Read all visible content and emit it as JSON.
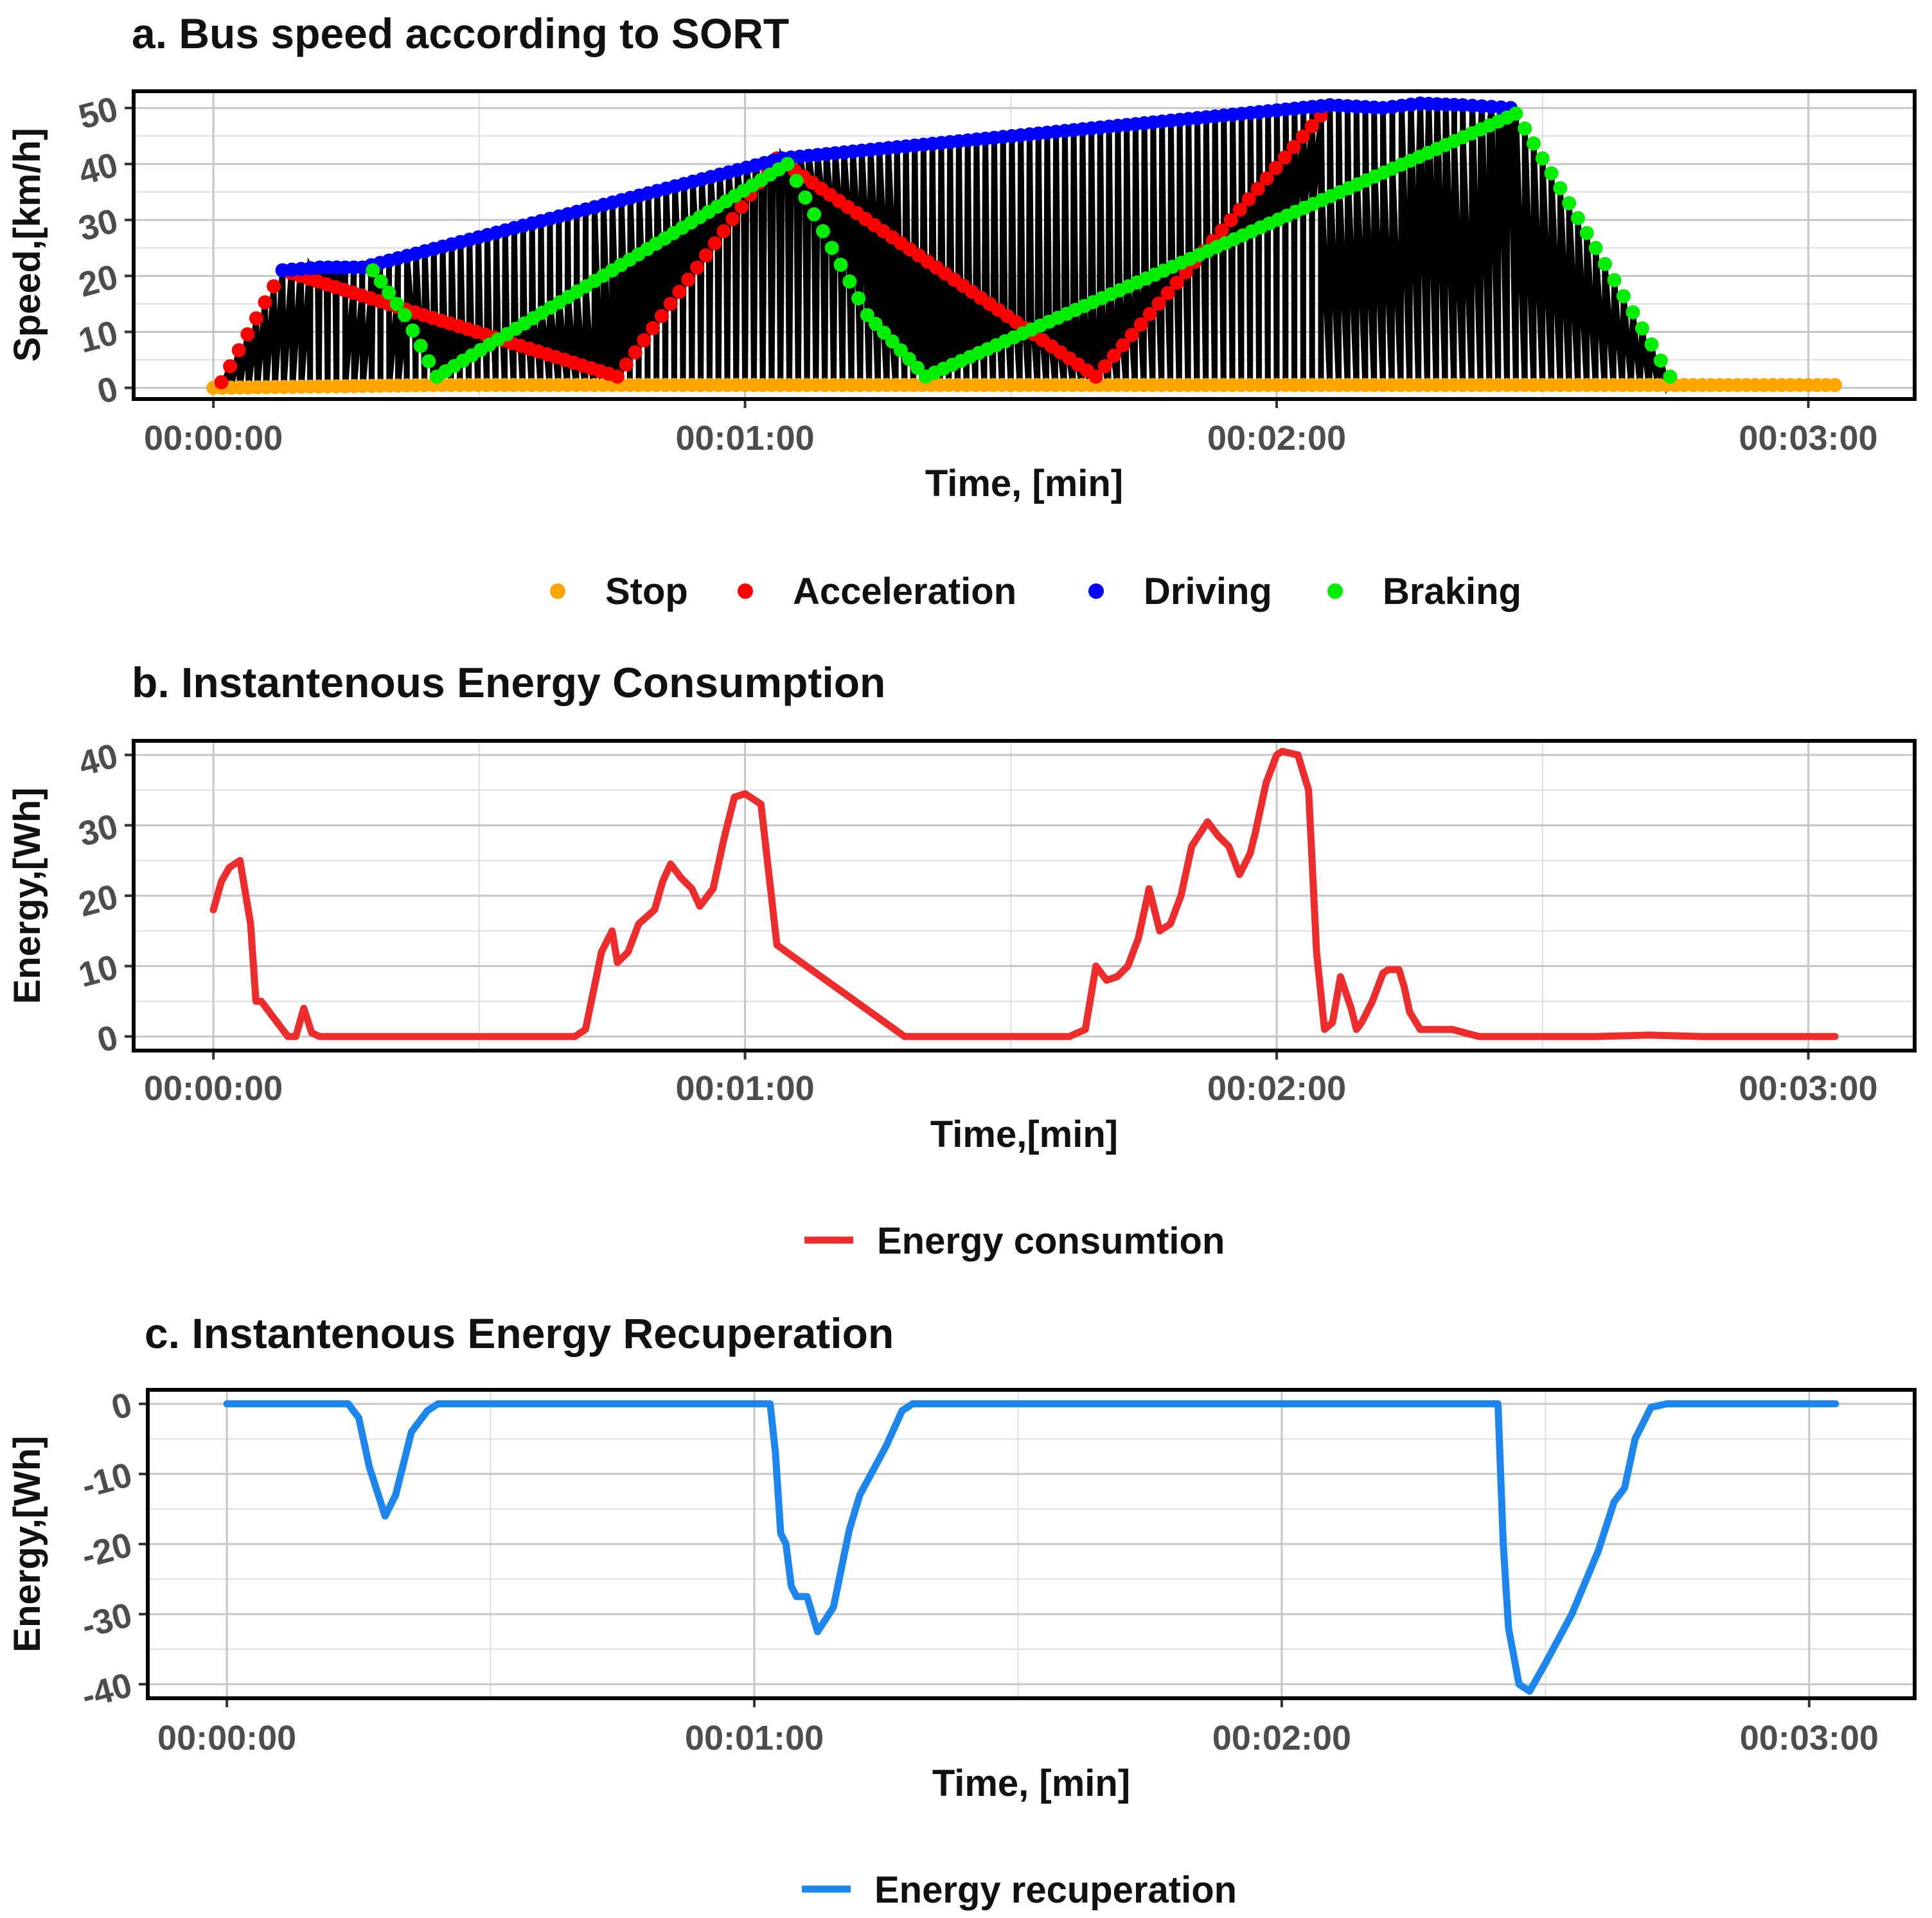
{
  "chart_data": [
    {
      "type": "scatter",
      "title": "a. Bus speed according to SORT",
      "xlabel": "Time, [min]",
      "ylabel": "Speed,[km/h]",
      "xlim": [
        -0.15,
        3.2
      ],
      "ylim": [
        -2,
        53
      ],
      "x_ticks": [
        0,
        1,
        2,
        3
      ],
      "x_tick_labels": [
        "00:00:00",
        "00:01:00",
        "00:02:00",
        "00:03:00"
      ],
      "y_ticks": [
        0,
        10,
        20,
        30,
        40,
        50
      ],
      "y_tick_labels": [
        "0",
        "10",
        "20",
        "30",
        "40",
        "50"
      ],
      "grid": true,
      "legend_position": "bottom",
      "connect_line_color": "#000000",
      "series": [
        {
          "name": "Stop",
          "color": "#FFA500",
          "points": [
            [
              0,
              0
            ],
            [
              0.43,
              0.5
            ],
            [
              0.75,
              0.5
            ],
            [
              1.35,
              0.5
            ],
            [
              1.65,
              0.5
            ],
            [
              2.75,
              0.5
            ],
            [
              3.05,
              0.5
            ]
          ]
        },
        {
          "name": "Acceleration",
          "color": "#FF0000",
          "points": [
            [
              0.015,
              1
            ],
            [
              0.13,
              21
            ],
            [
              0.76,
              2
            ],
            [
              1.06,
              41
            ],
            [
              1.66,
              2
            ],
            [
              2.1,
              50.5
            ]
          ]
        },
        {
          "name": "Driving",
          "color": "#0000FF",
          "points": [
            [
              0.13,
              21
            ],
            [
              0.2,
              21.5
            ],
            [
              0.28,
              21.5
            ],
            [
              1.07,
              41
            ],
            [
              2.1,
              50.5
            ],
            [
              2.2,
              50
            ],
            [
              2.27,
              50.8
            ],
            [
              2.35,
              50.5
            ],
            [
              2.44,
              50
            ]
          ]
        },
        {
          "name": "Braking",
          "color": "#00EE00",
          "points": [
            [
              0.3,
              21
            ],
            [
              0.36,
              13
            ],
            [
              0.42,
              2
            ],
            [
              1.08,
              40
            ],
            [
              1.23,
              13
            ],
            [
              1.34,
              2
            ],
            [
              2.45,
              49
            ],
            [
              2.6,
              25
            ],
            [
              2.74,
              2
            ]
          ]
        }
      ]
    },
    {
      "type": "line",
      "title": "b. Instantenous Energy Consumption",
      "xlabel": "Time,[min]",
      "ylabel": "Energy,[Wh]",
      "xlim": [
        -0.15,
        3.2
      ],
      "ylim": [
        -2,
        42
      ],
      "x_ticks": [
        0,
        1,
        2,
        3
      ],
      "x_tick_labels": [
        "00:00:00",
        "00:01:00",
        "00:02:00",
        "00:03:00"
      ],
      "y_ticks": [
        0,
        10,
        20,
        30,
        40
      ],
      "y_tick_labels": [
        "0",
        "10",
        "20",
        "30",
        "40"
      ],
      "grid": true,
      "legend_position": "bottom",
      "series": [
        {
          "name": "Energy consumtion",
          "color": "#EE2C2C",
          "x": [
            0,
            0.015,
            0.03,
            0.05,
            0.07,
            0.08,
            0.09,
            0.1,
            0.12,
            0.14,
            0.155,
            0.17,
            0.185,
            0.2,
            0.21,
            0.24,
            0.4,
            0.47,
            0.68,
            0.7,
            0.73,
            0.75,
            0.76,
            0.78,
            0.8,
            0.83,
            0.845,
            0.86,
            0.88,
            0.9,
            0.915,
            0.94,
            0.96,
            0.98,
            1.0,
            1.03,
            1.06,
            1.3,
            1.59,
            1.61,
            1.64,
            1.66,
            1.68,
            1.7,
            1.72,
            1.74,
            1.76,
            1.78,
            1.8,
            1.82,
            1.84,
            1.87,
            1.89,
            1.91,
            1.93,
            1.95,
            1.96,
            1.98,
            2.0,
            2.01,
            2.04,
            2.06,
            2.075,
            2.09,
            2.105,
            2.12,
            2.14,
            2.15,
            2.16,
            2.18,
            2.2,
            2.21,
            2.23,
            2.24,
            2.25,
            2.27,
            2.3,
            2.33,
            2.38,
            2.42,
            2.44,
            2.45,
            2.6,
            2.7,
            2.8,
            3.05
          ],
          "y": [
            18,
            22,
            24,
            25,
            16,
            5,
            5,
            4,
            2,
            0,
            0,
            4,
            0.5,
            0,
            0,
            0,
            0,
            0,
            0,
            1,
            12,
            15,
            10.5,
            12,
            16,
            18,
            22,
            24.5,
            22.5,
            21,
            18.5,
            21,
            28,
            34,
            34.5,
            33,
            13,
            0,
            0,
            0,
            1,
            10,
            8,
            8.5,
            10,
            14,
            21,
            15,
            16,
            20,
            27,
            30.5,
            28.5,
            27,
            23,
            26,
            29,
            36,
            40,
            40.5,
            40,
            35,
            12,
            1,
            2,
            8.5,
            4,
            1,
            2,
            5,
            9,
            9.5,
            9.5,
            7,
            3.5,
            1,
            1,
            1,
            0,
            0,
            0,
            0,
            0,
            0.2,
            0,
            0
          ]
        }
      ]
    },
    {
      "type": "line",
      "title": "c. Instantenous Energy Recuperation",
      "xlabel": "Time, [min]",
      "ylabel": "Energy,[Wh]",
      "xlim": [
        -0.15,
        3.2
      ],
      "ylim": [
        -42,
        2
      ],
      "x_ticks": [
        0,
        1,
        2,
        3
      ],
      "x_tick_labels": [
        "00:00:00",
        "00:01:00",
        "00:02:00",
        "00:03:00"
      ],
      "y_ticks": [
        0,
        -10,
        -20,
        -30,
        -40
      ],
      "y_tick_labels": [
        "0",
        "-10",
        "-20",
        "-30",
        "-40"
      ],
      "grid": true,
      "legend_position": "bottom",
      "series": [
        {
          "name": "Energy recuperation",
          "color": "#1C86EE",
          "x": [
            0,
            0.23,
            0.25,
            0.27,
            0.3,
            0.32,
            0.35,
            0.38,
            0.4,
            0.5,
            1.0,
            1.03,
            1.04,
            1.05,
            1.06,
            1.07,
            1.08,
            1.1,
            1.12,
            1.15,
            1.18,
            1.2,
            1.25,
            1.28,
            1.3,
            1.33,
            1.5,
            2.4,
            2.41,
            2.42,
            2.43,
            2.45,
            2.47,
            2.5,
            2.55,
            2.6,
            2.63,
            2.65,
            2.67,
            2.7,
            2.73,
            3.05
          ],
          "y": [
            0,
            0,
            -2,
            -9,
            -16,
            -13,
            -4,
            -1,
            0,
            0,
            0,
            0,
            -7,
            -18.5,
            -20,
            -26,
            -27.5,
            -27.5,
            -32.5,
            -29,
            -18,
            -13,
            -6,
            -1,
            0,
            0,
            0,
            0,
            0,
            -20,
            -32,
            -40,
            -41,
            -37,
            -30,
            -21,
            -14,
            -12,
            -5,
            -0.5,
            0,
            0
          ]
        }
      ]
    }
  ]
}
